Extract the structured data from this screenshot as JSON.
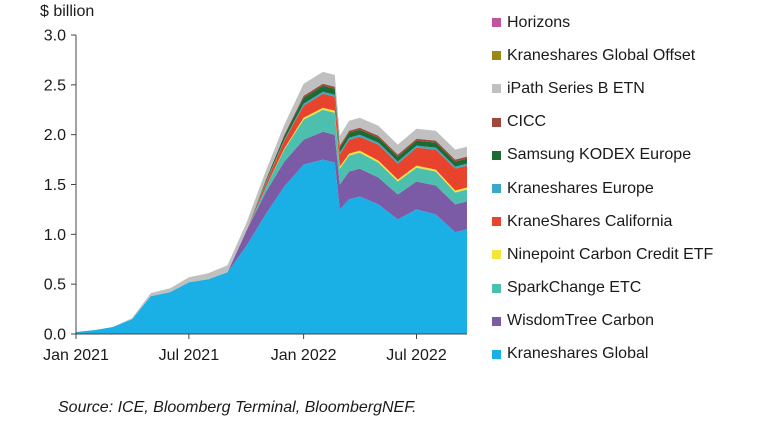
{
  "chart_data": {
    "type": "area",
    "stacked": true,
    "ylabel": "$ billion",
    "ylim": [
      0,
      3.0
    ],
    "y_ticks": [
      "0.0",
      "0.5",
      "1.0",
      "1.5",
      "2.0",
      "2.5",
      "3.0"
    ],
    "x_range": [
      "2021-01-01",
      "2022-09-20"
    ],
    "x_ticks": [
      {
        "date": "2021-01-01",
        "label": "Jan 2021"
      },
      {
        "date": "2021-07-01",
        "label": "Jul 2021"
      },
      {
        "date": "2022-01-01",
        "label": "Jan 2022"
      },
      {
        "date": "2022-07-01",
        "label": "Jul 2022"
      }
    ],
    "grid": false,
    "legend_position": "right",
    "x": [
      "2021-01-01",
      "2021-02-01",
      "2021-03-01",
      "2021-04-01",
      "2021-05-01",
      "2021-06-01",
      "2021-07-01",
      "2021-08-01",
      "2021-09-01",
      "2021-10-01",
      "2021-11-01",
      "2021-12-01",
      "2022-01-01",
      "2022-02-01",
      "2022-02-20",
      "2022-02-28",
      "2022-03-15",
      "2022-04-01",
      "2022-05-01",
      "2022-06-01",
      "2022-07-01",
      "2022-08-01",
      "2022-09-01",
      "2022-09-20"
    ],
    "series": [
      {
        "name": "Kraneshares Global",
        "color": "#1ab0e6",
        "values": [
          0.02,
          0.04,
          0.07,
          0.15,
          0.38,
          0.42,
          0.52,
          0.55,
          0.62,
          0.88,
          1.2,
          1.48,
          1.7,
          1.75,
          1.72,
          1.25,
          1.35,
          1.38,
          1.3,
          1.15,
          1.25,
          1.2,
          1.02,
          1.05
        ]
      },
      {
        "name": "WisdomTree Carbon",
        "color": "#7b5aa6",
        "values": [
          0,
          0,
          0,
          0,
          0,
          0,
          0,
          0,
          0,
          0.15,
          0.22,
          0.25,
          0.25,
          0.28,
          0.28,
          0.25,
          0.28,
          0.28,
          0.27,
          0.25,
          0.28,
          0.29,
          0.28,
          0.28
        ]
      },
      {
        "name": "SparkChange ETC",
        "color": "#4dbfae",
        "values": [
          0,
          0,
          0,
          0,
          0,
          0,
          0,
          0,
          0,
          0,
          0.05,
          0.12,
          0.2,
          0.22,
          0.22,
          0.16,
          0.16,
          0.16,
          0.15,
          0.13,
          0.14,
          0.14,
          0.12,
          0.12
        ]
      },
      {
        "name": "Ninepoint Carbon Credit ETF",
        "color": "#f7e43a",
        "values": [
          0,
          0,
          0,
          0,
          0,
          0,
          0,
          0,
          0,
          0,
          0,
          0.01,
          0.02,
          0.02,
          0.02,
          0.02,
          0.02,
          0.02,
          0.02,
          0.02,
          0.02,
          0.02,
          0.02,
          0.02
        ]
      },
      {
        "name": "KraneShares California",
        "color": "#e8432c",
        "values": [
          0,
          0,
          0,
          0,
          0,
          0,
          0,
          0,
          0,
          0,
          0.04,
          0.08,
          0.12,
          0.14,
          0.14,
          0.12,
          0.14,
          0.14,
          0.16,
          0.16,
          0.18,
          0.2,
          0.22,
          0.22
        ]
      },
      {
        "name": "Kraneshares Europe",
        "color": "#3ba7c9",
        "values": [
          0,
          0,
          0,
          0,
          0,
          0,
          0,
          0,
          0,
          0,
          0.01,
          0.01,
          0.02,
          0.02,
          0.02,
          0.02,
          0.02,
          0.02,
          0.02,
          0.02,
          0.02,
          0.02,
          0.02,
          0.02
        ]
      },
      {
        "name": "Samsung KODEX Europe",
        "color": "#1c6b33",
        "values": [
          0,
          0,
          0,
          0,
          0,
          0,
          0,
          0,
          0,
          0,
          0.02,
          0.04,
          0.06,
          0.06,
          0.06,
          0.05,
          0.05,
          0.05,
          0.05,
          0.05,
          0.05,
          0.05,
          0.05,
          0.05
        ]
      },
      {
        "name": "CICC",
        "color": "#a0463a",
        "values": [
          0,
          0,
          0,
          0,
          0,
          0,
          0,
          0,
          0,
          0,
          0,
          0.01,
          0.02,
          0.02,
          0.02,
          0.02,
          0.02,
          0.02,
          0.02,
          0.02,
          0.02,
          0.02,
          0.02,
          0.02
        ]
      },
      {
        "name": "iPath Series B ETN",
        "color": "#c0c0c0",
        "values": [
          0,
          0,
          0,
          0.01,
          0.03,
          0.04,
          0.05,
          0.06,
          0.07,
          0.08,
          0.09,
          0.1,
          0.12,
          0.12,
          0.12,
          0.1,
          0.1,
          0.1,
          0.1,
          0.1,
          0.1,
          0.1,
          0.1,
          0.1
        ]
      },
      {
        "name": "Kraneshares Global Offset",
        "color": "#9a8a10",
        "values": [
          0,
          0,
          0,
          0,
          0,
          0,
          0,
          0,
          0,
          0,
          0,
          0,
          0,
          0,
          0,
          0,
          0,
          0,
          0,
          0,
          0,
          0,
          0,
          0
        ]
      },
      {
        "name": "Horizons",
        "color": "#c2549e",
        "values": [
          0,
          0,
          0,
          0,
          0,
          0,
          0,
          0,
          0,
          0,
          0,
          0,
          0,
          0,
          0,
          0,
          0,
          0,
          0,
          0,
          0,
          0,
          0,
          0
        ]
      }
    ]
  },
  "source_note": "Source: ICE, Bloomberg Terminal, BloombergNEF."
}
